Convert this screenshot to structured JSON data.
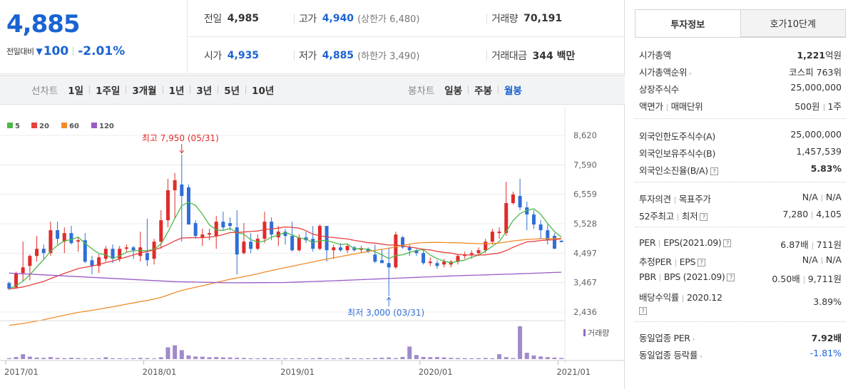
{
  "price": {
    "current": "4,885",
    "change_label": "전일대비",
    "change_arrow": "▼",
    "change_amount": "100",
    "change_percent": "-2.01%"
  },
  "quotes": {
    "prev_label": "전일",
    "prev_value": "4,985",
    "high_label": "고가",
    "high_value": "4,940",
    "high_limit_label": "상한가",
    "high_limit_value": "6,480",
    "volume_label": "거래량",
    "volume_value": "70,191",
    "open_label": "시가",
    "open_value": "4,935",
    "low_label": "저가",
    "low_value": "4,885",
    "low_limit_label": "하한가",
    "low_limit_value": "3,490",
    "amount_label": "거래대금",
    "amount_value": "344 백만"
  },
  "toolbar": {
    "line_label": "선차트",
    "line_items": [
      "1일",
      "1주일",
      "3개월",
      "1년",
      "3년",
      "5년",
      "10년"
    ],
    "candle_label": "봉차트",
    "candle_items": [
      "일봉",
      "주봉",
      "월봉"
    ],
    "candle_active": "월봉"
  },
  "chart_data": {
    "type": "candlestick",
    "title": "",
    "legend": [
      "5",
      "20",
      "60",
      "120"
    ],
    "legend_colors": [
      "#4cb848",
      "#e83f3f",
      "#f08c2b",
      "#9b5cc7"
    ],
    "y_ticks": [
      "8,620",
      "7,590",
      "6,559",
      "5,528",
      "4,497",
      "3,467",
      "2,436"
    ],
    "ylim": [
      2436,
      8620
    ],
    "x_tick_labels": [
      "2017/01",
      "2018/01",
      "2019/01",
      "2020/01",
      "2021/01"
    ],
    "max_annotation": "최고 7,950 (05/31)",
    "min_annotation": "최저 3,000 (03/31)",
    "volume_label": "거래량",
    "up_color": "#e02b2b",
    "down_color": "#2f6fd6",
    "candles": [
      {
        "o": 3450,
        "h": 3500,
        "l": 3200,
        "c": 3250
      },
      {
        "o": 3300,
        "h": 3850,
        "l": 3250,
        "c": 3800
      },
      {
        "o": 3800,
        "h": 4900,
        "l": 3500,
        "c": 4000
      },
      {
        "o": 4050,
        "h": 4450,
        "l": 3550,
        "c": 4400
      },
      {
        "o": 4400,
        "h": 5100,
        "l": 4200,
        "c": 4650
      },
      {
        "o": 4650,
        "h": 4800,
        "l": 4300,
        "c": 4500
      },
      {
        "o": 4500,
        "h": 5600,
        "l": 4400,
        "c": 5300
      },
      {
        "o": 5300,
        "h": 5600,
        "l": 4800,
        "c": 5000
      },
      {
        "o": 4900,
        "h": 5400,
        "l": 4500,
        "c": 5200
      },
      {
        "o": 5200,
        "h": 5450,
        "l": 4800,
        "c": 4850
      },
      {
        "o": 4900,
        "h": 5050,
        "l": 4550,
        "c": 4950
      },
      {
        "o": 4950,
        "h": 5200,
        "l": 4150,
        "c": 4200
      },
      {
        "o": 4250,
        "h": 4400,
        "l": 3750,
        "c": 4050
      },
      {
        "o": 4050,
        "h": 4450,
        "l": 3800,
        "c": 4350
      },
      {
        "o": 4300,
        "h": 4750,
        "l": 4200,
        "c": 4650
      },
      {
        "o": 4650,
        "h": 4800,
        "l": 4150,
        "c": 4300
      },
      {
        "o": 4300,
        "h": 4750,
        "l": 4200,
        "c": 4650
      },
      {
        "o": 4650,
        "h": 4800,
        "l": 4550,
        "c": 4700
      },
      {
        "o": 4700,
        "h": 4750,
        "l": 4300,
        "c": 4600
      },
      {
        "o": 4400,
        "h": 5250,
        "l": 4200,
        "c": 4700
      },
      {
        "o": 4500,
        "h": 5700,
        "l": 4050,
        "c": 4250
      },
      {
        "o": 4300,
        "h": 5000,
        "l": 4100,
        "c": 4900
      },
      {
        "o": 4900,
        "h": 6000,
        "l": 4650,
        "c": 5650
      },
      {
        "o": 5650,
        "h": 7100,
        "l": 5400,
        "c": 6700
      },
      {
        "o": 6700,
        "h": 7300,
        "l": 5700,
        "c": 7050
      },
      {
        "o": 6900,
        "h": 7950,
        "l": 4900,
        "c": 6500
      },
      {
        "o": 6800,
        "h": 6900,
        "l": 5500,
        "c": 5500
      },
      {
        "o": 5550,
        "h": 5650,
        "l": 5000,
        "c": 5100
      },
      {
        "o": 5050,
        "h": 5350,
        "l": 4750,
        "c": 5150
      },
      {
        "o": 5150,
        "h": 5350,
        "l": 4950,
        "c": 5200
      },
      {
        "o": 5100,
        "h": 5800,
        "l": 4650,
        "c": 5600
      },
      {
        "o": 5600,
        "h": 5950,
        "l": 5300,
        "c": 5400
      },
      {
        "o": 5550,
        "h": 5750,
        "l": 5300,
        "c": 5450
      },
      {
        "o": 5400,
        "h": 6000,
        "l": 3750,
        "c": 4450
      },
      {
        "o": 4500,
        "h": 5550,
        "l": 4450,
        "c": 4900
      },
      {
        "o": 4900,
        "h": 5200,
        "l": 4500,
        "c": 4650
      },
      {
        "o": 4650,
        "h": 5150,
        "l": 4600,
        "c": 5000
      },
      {
        "o": 5000,
        "h": 5950,
        "l": 4850,
        "c": 5600
      },
      {
        "o": 5600,
        "h": 5750,
        "l": 4950,
        "c": 5150
      },
      {
        "o": 5050,
        "h": 5450,
        "l": 4750,
        "c": 5250
      },
      {
        "o": 5250,
        "h": 5350,
        "l": 4800,
        "c": 5100
      },
      {
        "o": 5100,
        "h": 5600,
        "l": 4550,
        "c": 4600
      },
      {
        "o": 4600,
        "h": 5150,
        "l": 4550,
        "c": 5050
      },
      {
        "o": 5050,
        "h": 5250,
        "l": 4850,
        "c": 4950
      },
      {
        "o": 5000,
        "h": 5450,
        "l": 4550,
        "c": 4650
      },
      {
        "o": 4650,
        "h": 5500,
        "l": 4600,
        "c": 5450
      },
      {
        "o": 5450,
        "h": 5450,
        "l": 4200,
        "c": 4600
      },
      {
        "o": 4600,
        "h": 4800,
        "l": 4300,
        "c": 4700
      },
      {
        "o": 4700,
        "h": 4850,
        "l": 4550,
        "c": 4600
      },
      {
        "o": 4600,
        "h": 4800,
        "l": 4500,
        "c": 4750
      },
      {
        "o": 4700,
        "h": 4750,
        "l": 4550,
        "c": 4600
      },
      {
        "o": 4650,
        "h": 4750,
        "l": 4500,
        "c": 4650
      },
      {
        "o": 4650,
        "h": 4700,
        "l": 4500,
        "c": 4550
      },
      {
        "o": 4450,
        "h": 4800,
        "l": 4150,
        "c": 4200
      },
      {
        "o": 4250,
        "h": 4650,
        "l": 4150,
        "c": 4150
      },
      {
        "o": 4150,
        "h": 4700,
        "l": 3000,
        "c": 4000
      },
      {
        "o": 4000,
        "h": 5250,
        "l": 3950,
        "c": 5150
      },
      {
        "o": 5050,
        "h": 5100,
        "l": 4650,
        "c": 4700
      },
      {
        "o": 4700,
        "h": 4800,
        "l": 4400,
        "c": 4600
      },
      {
        "o": 4600,
        "h": 4650,
        "l": 4400,
        "c": 4500
      },
      {
        "o": 4500,
        "h": 4650,
        "l": 4100,
        "c": 4150
      },
      {
        "o": 4150,
        "h": 4350,
        "l": 4050,
        "c": 4200
      },
      {
        "o": 4150,
        "h": 4250,
        "l": 3950,
        "c": 4050
      },
      {
        "o": 4100,
        "h": 4300,
        "l": 4000,
        "c": 4200
      },
      {
        "o": 4100,
        "h": 4250,
        "l": 4000,
        "c": 4200
      },
      {
        "o": 4200,
        "h": 4450,
        "l": 4100,
        "c": 4400
      },
      {
        "o": 4400,
        "h": 4550,
        "l": 4300,
        "c": 4450
      },
      {
        "o": 4450,
        "h": 4600,
        "l": 4300,
        "c": 4500
      },
      {
        "o": 4500,
        "h": 4700,
        "l": 4400,
        "c": 4600
      },
      {
        "o": 4600,
        "h": 5000,
        "l": 4500,
        "c": 4900
      },
      {
        "o": 4900,
        "h": 5350,
        "l": 4800,
        "c": 5250
      },
      {
        "o": 5200,
        "h": 5400,
        "l": 5000,
        "c": 5250
      },
      {
        "o": 5200,
        "h": 7000,
        "l": 5100,
        "c": 6250
      },
      {
        "o": 6250,
        "h": 6650,
        "l": 6200,
        "c": 6550
      },
      {
        "o": 6500,
        "h": 7100,
        "l": 6000,
        "c": 6100
      },
      {
        "o": 6100,
        "h": 6300,
        "l": 5300,
        "c": 5850
      },
      {
        "o": 5850,
        "h": 6000,
        "l": 5350,
        "c": 5500
      },
      {
        "o": 5500,
        "h": 5650,
        "l": 5000,
        "c": 5300
      },
      {
        "o": 5300,
        "h": 5500,
        "l": 4800,
        "c": 4950
      },
      {
        "o": 5100,
        "h": 5200,
        "l": 4650,
        "c": 4650
      },
      {
        "o": 4935,
        "h": 4940,
        "l": 4885,
        "c": 4885
      }
    ],
    "volumes": [
      120,
      250,
      600,
      300,
      180,
      150,
      250,
      140,
      110,
      160,
      120,
      90,
      90,
      110,
      220,
      100,
      95,
      80,
      100,
      150,
      120,
      80,
      220,
      1450,
      1700,
      1100,
      450,
      320,
      300,
      230,
      250,
      210,
      200,
      160,
      140,
      110,
      95,
      130,
      120,
      90,
      90,
      90,
      110,
      80,
      100,
      150,
      90,
      90,
      80,
      150,
      100,
      90,
      90,
      130,
      160,
      190,
      120,
      260,
      1550,
      500,
      260,
      240,
      250,
      200,
      150,
      120,
      110,
      100,
      110,
      140,
      100,
      600,
      240,
      120,
      4050,
      780,
      450,
      320,
      240,
      180,
      140
    ]
  },
  "invest": {
    "tab_on": "투자정보",
    "tab_off": "호가10단계",
    "sec1": [
      {
        "label": "시가총액",
        "value_bold": "1,221",
        "value_rest": "억원"
      },
      {
        "label": "시가총액순위",
        "value_rest": "코스피 763위"
      },
      {
        "label": "상장주식수",
        "value_rest": "25,000,000"
      },
      {
        "label_a": "액면가",
        "label_b": "매매단위",
        "value_a": "500원",
        "value_b": "1주"
      }
    ],
    "sec2": [
      {
        "label": "외국인한도주식수(A)",
        "value": "25,000,000"
      },
      {
        "label": "외국인보유주식수(B)",
        "value": "1,457,539"
      },
      {
        "label": "외국인소진율(B/A)",
        "value": "5.83%"
      }
    ],
    "sec3": [
      {
        "label_a": "투자의견",
        "label_b": "목표주가",
        "value_a": "N/A",
        "value_b": "N/A"
      },
      {
        "label_a": "52주최고",
        "label_b": "최저",
        "value_a": "7,280",
        "value_b": "4,105"
      }
    ],
    "sec4": [
      {
        "label_a": "PER",
        "label_b": "EPS(2021.09)",
        "value_a": "6.87배",
        "value_b": "711원"
      },
      {
        "label_a": "추정PER",
        "label_b": "EPS",
        "value_a": "N/A",
        "value_b": "N/A"
      },
      {
        "label_a": "PBR",
        "label_b": "BPS (2021.09)",
        "value_a": "0.50배",
        "value_b": "9,711원"
      },
      {
        "label_a": "배당수익률",
        "label_b": "2020.12",
        "value": "3.89%"
      }
    ],
    "sec5": [
      {
        "label": "동일업종 PER",
        "value": "7.92배"
      },
      {
        "label": "동일업종 등락률",
        "value": "-1.81%"
      }
    ]
  }
}
